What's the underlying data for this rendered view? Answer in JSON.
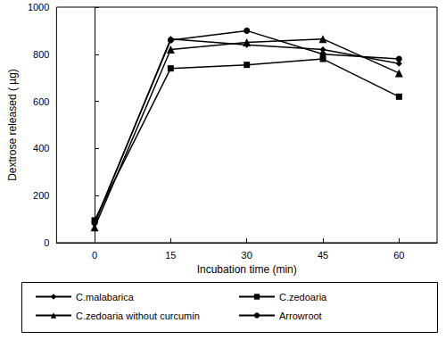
{
  "chart_data": {
    "type": "line",
    "x_label": "Incubation time (min)",
    "y_label": "Dextrose released ( µg)",
    "x": [
      0,
      15,
      30,
      45,
      60
    ],
    "xlim": [
      -7.5,
      67.5
    ],
    "xticks": [
      0,
      15,
      30,
      45,
      60
    ],
    "ylim": [
      0,
      1000
    ],
    "yticks": [
      0,
      200,
      400,
      600,
      800,
      1000
    ],
    "grid": false,
    "legend": "bottom",
    "series": [
      {
        "name": "C.malabarica",
        "color": "#000000",
        "marker": "diamond",
        "values": [
          80,
          865,
          840,
          820,
          760
        ]
      },
      {
        "name": "C.zedoaria",
        "color": "#000000",
        "marker": "rect",
        "values": [
          95,
          740,
          755,
          780,
          620
        ]
      },
      {
        "name": "C.zedoaria without curcumin",
        "color": "#000000",
        "marker": "triangle",
        "values": [
          65,
          820,
          850,
          865,
          720
        ]
      },
      {
        "name": "Arrowroot",
        "color": "#000000",
        "marker": "circle",
        "values": [
          85,
          860,
          900,
          800,
          780
        ]
      }
    ]
  }
}
